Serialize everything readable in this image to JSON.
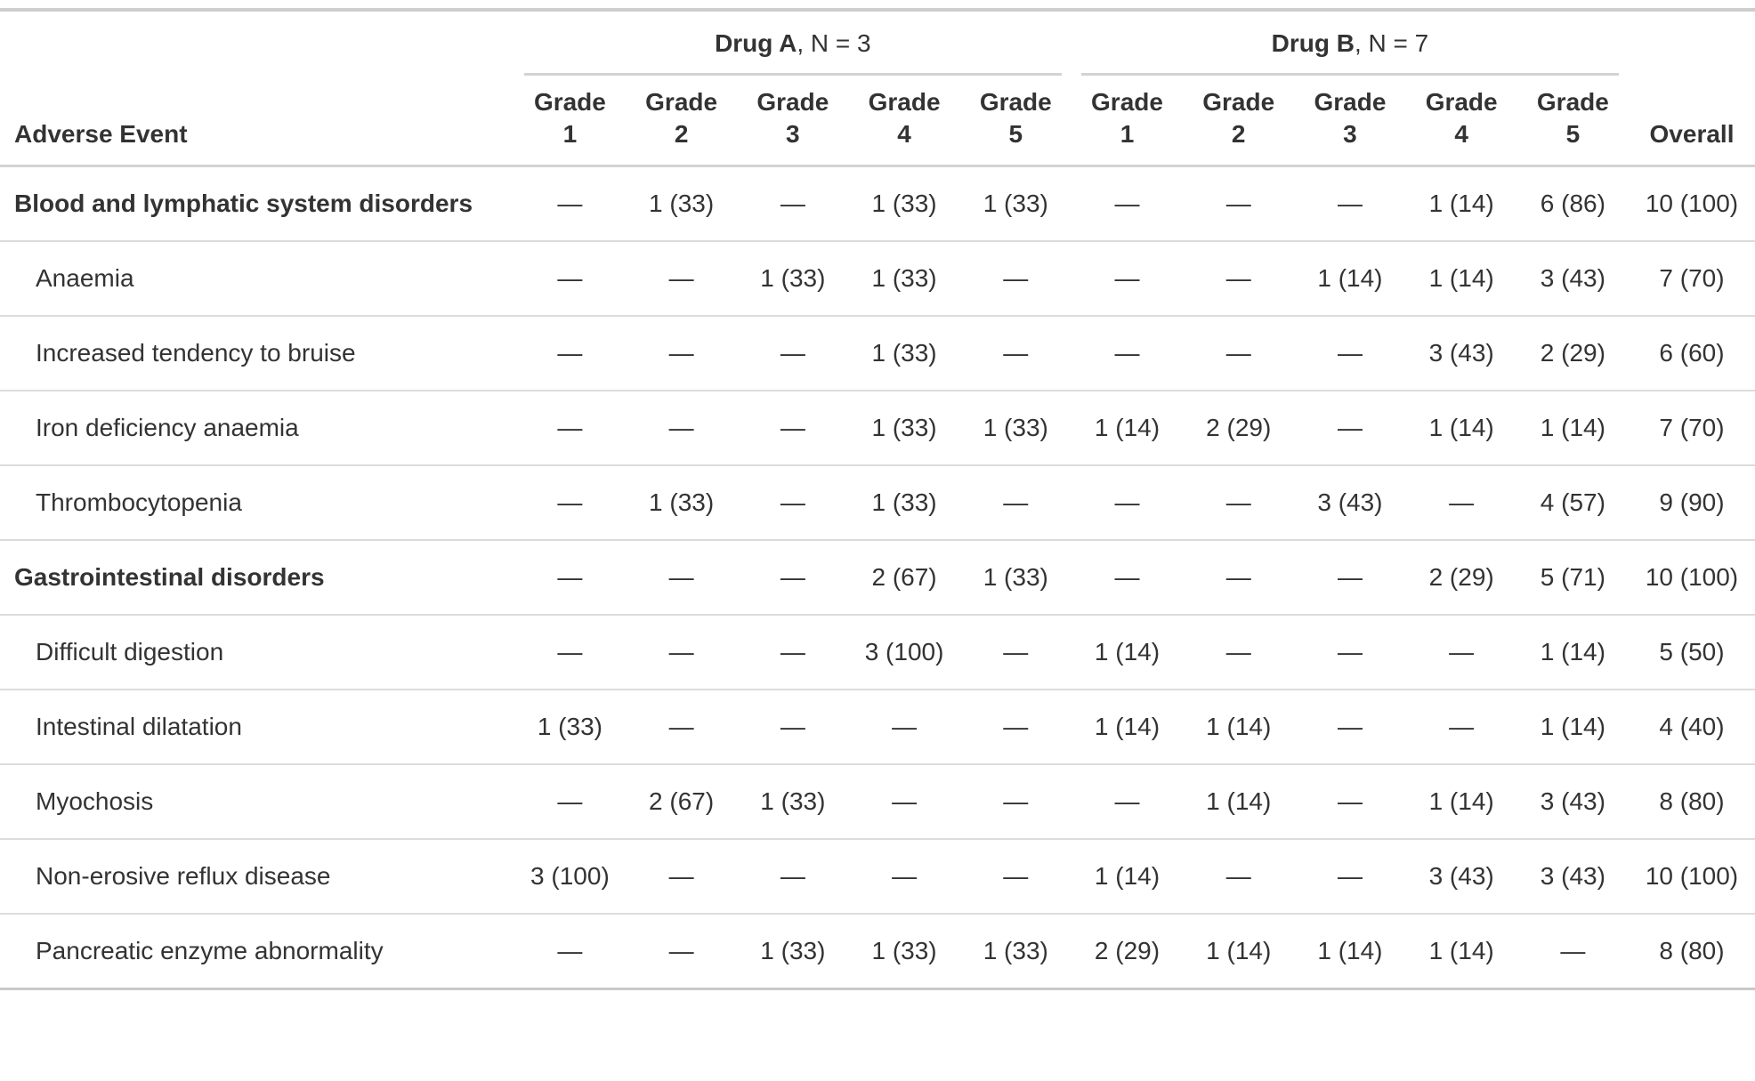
{
  "colors": {
    "text": "#333333",
    "border_outer": "#cecece",
    "border_header": "#d3d3d3",
    "border_row": "#dcdcdc",
    "background": "#ffffff"
  },
  "chart_data": {
    "type": "table",
    "stub_header": "Adverse Event",
    "overall_header": "Overall",
    "spanners": [
      {
        "drug": "Drug A",
        "suffix": ", N = 3"
      },
      {
        "drug": "Drug B",
        "suffix": ", N = 7"
      }
    ],
    "grade_labels": [
      "Grade 1",
      "Grade 2",
      "Grade 3",
      "Grade 4",
      "Grade 5"
    ],
    "rows": [
      {
        "label": "Blood and lymphatic system disorders",
        "level": "group",
        "a": [
          "—",
          "1 (33)",
          "—",
          "1 (33)",
          "1 (33)"
        ],
        "b": [
          "—",
          "—",
          "—",
          "1 (14)",
          "6 (86)"
        ],
        "overall": "10 (100)"
      },
      {
        "label": "Anaemia",
        "level": "sub",
        "a": [
          "—",
          "—",
          "1 (33)",
          "1 (33)",
          "—"
        ],
        "b": [
          "—",
          "—",
          "1 (14)",
          "1 (14)",
          "3 (43)"
        ],
        "overall": "7 (70)"
      },
      {
        "label": "Increased tendency to bruise",
        "level": "sub",
        "a": [
          "—",
          "—",
          "—",
          "1 (33)",
          "—"
        ],
        "b": [
          "—",
          "—",
          "—",
          "3 (43)",
          "2 (29)"
        ],
        "overall": "6 (60)"
      },
      {
        "label": "Iron deficiency anaemia",
        "level": "sub",
        "a": [
          "—",
          "—",
          "—",
          "1 (33)",
          "1 (33)"
        ],
        "b": [
          "1 (14)",
          "2 (29)",
          "—",
          "1 (14)",
          "1 (14)"
        ],
        "overall": "7 (70)"
      },
      {
        "label": "Thrombocytopenia",
        "level": "sub",
        "a": [
          "—",
          "1 (33)",
          "—",
          "1 (33)",
          "—"
        ],
        "b": [
          "—",
          "—",
          "3 (43)",
          "—",
          "4 (57)"
        ],
        "overall": "9 (90)"
      },
      {
        "label": "Gastrointestinal disorders",
        "level": "group",
        "a": [
          "—",
          "—",
          "—",
          "2 (67)",
          "1 (33)"
        ],
        "b": [
          "—",
          "—",
          "—",
          "2 (29)",
          "5 (71)"
        ],
        "overall": "10 (100)"
      },
      {
        "label": "Difficult digestion",
        "level": "sub",
        "a": [
          "—",
          "—",
          "—",
          "3 (100)",
          "—"
        ],
        "b": [
          "1 (14)",
          "—",
          "—",
          "—",
          "1 (14)"
        ],
        "overall": "5 (50)"
      },
      {
        "label": "Intestinal dilatation",
        "level": "sub",
        "a": [
          "1 (33)",
          "—",
          "—",
          "—",
          "—"
        ],
        "b": [
          "1 (14)",
          "1 (14)",
          "—",
          "—",
          "1 (14)"
        ],
        "overall": "4 (40)"
      },
      {
        "label": "Myochosis",
        "level": "sub",
        "a": [
          "—",
          "2 (67)",
          "1 (33)",
          "—",
          "—"
        ],
        "b": [
          "—",
          "1 (14)",
          "—",
          "1 (14)",
          "3 (43)"
        ],
        "overall": "8 (80)"
      },
      {
        "label": "Non-erosive reflux disease",
        "level": "sub",
        "a": [
          "3 (100)",
          "—",
          "—",
          "—",
          "—"
        ],
        "b": [
          "1 (14)",
          "—",
          "—",
          "3 (43)",
          "3 (43)"
        ],
        "overall": "10 (100)"
      },
      {
        "label": "Pancreatic enzyme abnormality",
        "level": "sub",
        "a": [
          "—",
          "—",
          "1 (33)",
          "1 (33)",
          "1 (33)"
        ],
        "b": [
          "2 (29)",
          "1 (14)",
          "1 (14)",
          "1 (14)",
          "—"
        ],
        "overall": "8 (80)"
      }
    ]
  }
}
